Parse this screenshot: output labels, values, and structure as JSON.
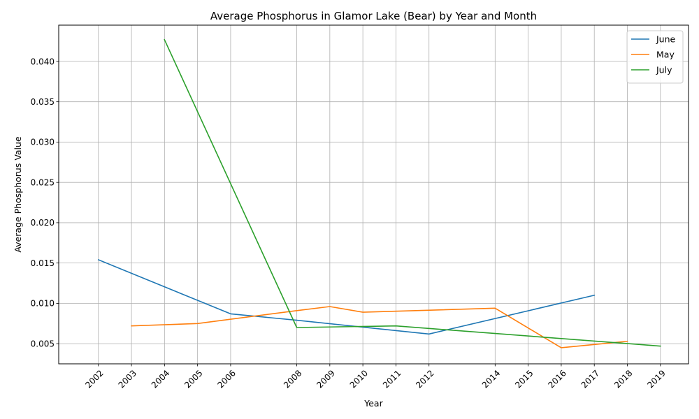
{
  "chart_data": {
    "type": "line",
    "title": "Average Phosphorus in Glamor Lake (Bear) by Year and Month",
    "xlabel": "Year",
    "ylabel": "Average Phosphorus Value",
    "xlim": [
      2000.8,
      2019.85
    ],
    "ylim": [
      0.0025,
      0.0445
    ],
    "x_ticks": [
      2002,
      2003,
      2004,
      2005,
      2006,
      2008,
      2009,
      2010,
      2011,
      2012,
      2014,
      2015,
      2016,
      2017,
      2018,
      2019
    ],
    "y_ticks": [
      0.005,
      0.01,
      0.015,
      0.02,
      0.025,
      0.03,
      0.035,
      0.04
    ],
    "y_tick_labels": [
      "0.005",
      "0.010",
      "0.015",
      "0.020",
      "0.025",
      "0.030",
      "0.035",
      "0.040"
    ],
    "grid": true,
    "legend_position": "top-right",
    "series": [
      {
        "name": "June",
        "color": "#1f77b4",
        "points": [
          [
            2002,
            0.0154
          ],
          [
            2006,
            0.0087
          ],
          [
            2008,
            0.0079
          ],
          [
            2012,
            0.0062
          ],
          [
            2017,
            0.011
          ]
        ]
      },
      {
        "name": "May",
        "color": "#ff7f0e",
        "points": [
          [
            2003,
            0.0072
          ],
          [
            2005,
            0.0075
          ],
          [
            2008,
            0.0091
          ],
          [
            2009,
            0.0096
          ],
          [
            2010,
            0.0089
          ],
          [
            2014,
            0.0094
          ],
          [
            2016,
            0.0045
          ],
          [
            2018,
            0.0053
          ]
        ]
      },
      {
        "name": "July",
        "color": "#2ca02c",
        "points": [
          [
            2004,
            0.0427
          ],
          [
            2008,
            0.007
          ],
          [
            2011,
            0.0072
          ],
          [
            2019,
            0.0047
          ]
        ]
      }
    ]
  }
}
